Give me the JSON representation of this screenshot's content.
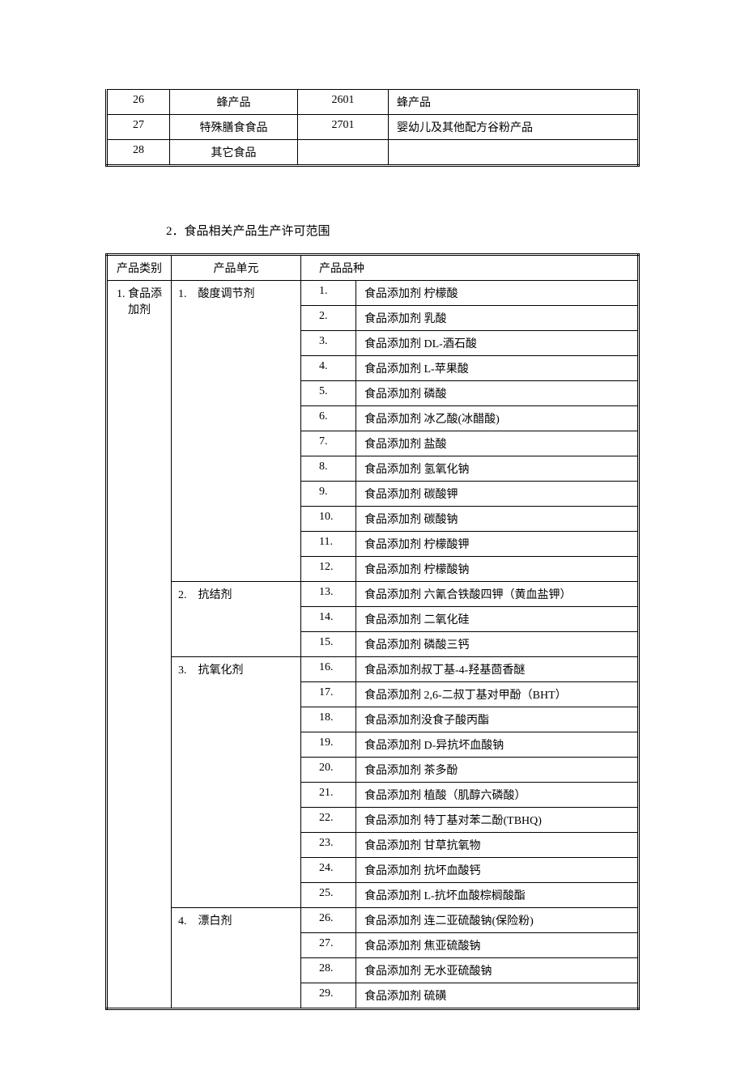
{
  "table1": {
    "rows": [
      {
        "n": "26",
        "name": "蜂产品",
        "code": "2601",
        "desc": "蜂产品"
      },
      {
        "n": "27",
        "name": "特殊膳食食品",
        "code": "2701",
        "desc": "婴幼儿及其他配方谷粉产品"
      },
      {
        "n": "28",
        "name": "其它食品",
        "code": "",
        "desc": ""
      }
    ]
  },
  "section2": {
    "title": "2．食品相关产品生产许可范围",
    "headers": {
      "category": "产品类别",
      "unit": "产品单元",
      "variety": "产品品种"
    },
    "category": "1. 食品添加剂",
    "units": [
      {
        "label": "1.　酸度调节剂",
        "items": [
          {
            "n": "1.",
            "desc": "食品添加剂 柠檬酸"
          },
          {
            "n": "2.",
            "desc": "食品添加剂 乳酸"
          },
          {
            "n": "3.",
            "desc": "食品添加剂 DL-酒石酸"
          },
          {
            "n": "4.",
            "desc": "食品添加剂 L-苹果酸"
          },
          {
            "n": "5.",
            "desc": "食品添加剂 磷酸"
          },
          {
            "n": "6.",
            "desc": "食品添加剂 冰乙酸(冰醋酸)"
          },
          {
            "n": "7.",
            "desc": "食品添加剂 盐酸"
          },
          {
            "n": "8.",
            "desc": "食品添加剂 氢氧化钠"
          },
          {
            "n": "9.",
            "desc": "食品添加剂 碳酸钾"
          },
          {
            "n": "10.",
            "desc": "食品添加剂 碳酸钠"
          },
          {
            "n": "11.",
            "desc": "食品添加剂 柠檬酸钾"
          },
          {
            "n": "12.",
            "desc": "食品添加剂 柠檬酸钠"
          }
        ]
      },
      {
        "label": "2.　抗结剂",
        "items": [
          {
            "n": "13.",
            "desc": "食品添加剂 六氰合铁酸四钾（黄血盐钾）"
          },
          {
            "n": "14.",
            "desc": "食品添加剂 二氧化硅"
          },
          {
            "n": "15.",
            "desc": "食品添加剂 磷酸三钙"
          }
        ]
      },
      {
        "label": "3.　抗氧化剂",
        "items": [
          {
            "n": "16.",
            "desc": "食品添加剂叔丁基-4-羟基茴香醚"
          },
          {
            "n": "17.",
            "desc": "食品添加剂 2,6-二叔丁基对甲酚（BHT）"
          },
          {
            "n": "18.",
            "desc": "食品添加剂没食子酸丙酯"
          },
          {
            "n": "19.",
            "desc": "食品添加剂 D-异抗坏血酸钠"
          },
          {
            "n": "20.",
            "desc": "食品添加剂 茶多酚"
          },
          {
            "n": "21.",
            "desc": "食品添加剂 植酸（肌醇六磷酸）"
          },
          {
            "n": "22.",
            "desc": "食品添加剂 特丁基对苯二酚(TBHQ)"
          },
          {
            "n": "23.",
            "desc": "食品添加剂 甘草抗氧物"
          },
          {
            "n": "24.",
            "desc": "食品添加剂 抗坏血酸钙"
          },
          {
            "n": "25.",
            "desc": "食品添加剂 L-抗坏血酸棕榈酸酯"
          }
        ]
      },
      {
        "label": "4.　漂白剂",
        "items": [
          {
            "n": "26.",
            "desc": "食品添加剂 连二亚硫酸钠(保险粉)"
          },
          {
            "n": "27.",
            "desc": "食品添加剂 焦亚硫酸钠"
          },
          {
            "n": "28.",
            "desc": "食品添加剂 无水亚硫酸钠"
          },
          {
            "n": "29.",
            "desc": "食品添加剂 硫磺"
          }
        ]
      }
    ]
  }
}
